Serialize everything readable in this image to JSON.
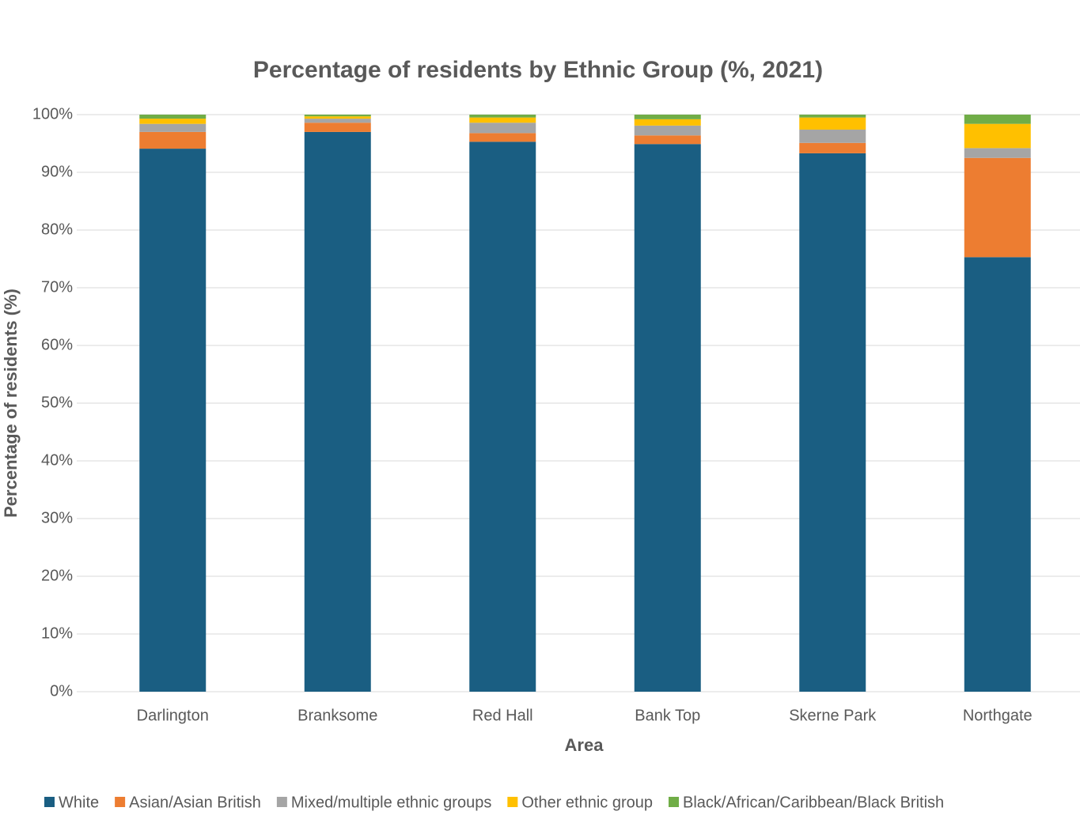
{
  "chart_data": {
    "type": "stacked-bar",
    "title": "Percentage of residents by Ethnic Group (%, 2021)",
    "x_label": "Area",
    "y_label": "Percentage of residents (%)",
    "categories": [
      "Darlington",
      "Branksome",
      "Red Hall",
      "Bank Top",
      "Skerne Park",
      "Northgate"
    ],
    "series": [
      {
        "name": "White",
        "color": "#1a5e82",
        "values": [
          94.1,
          97.0,
          95.3,
          94.9,
          93.3,
          75.3
        ]
      },
      {
        "name": "Asian/Asian British",
        "color": "#ed7d31",
        "values": [
          2.9,
          1.6,
          1.5,
          1.5,
          1.8,
          17.2
        ]
      },
      {
        "name": "Mixed/multiple ethnic groups",
        "color": "#a5a5a5",
        "values": [
          1.4,
          0.7,
          1.8,
          1.7,
          2.3,
          1.7
        ]
      },
      {
        "name": "Other ethnic group",
        "color": "#ffc000",
        "values": [
          0.9,
          0.4,
          0.9,
          1.1,
          2.1,
          4.2
        ]
      },
      {
        "name": "Black/African/Caribbean/Black British",
        "color": "#70ad47",
        "values": [
          0.7,
          0.3,
          0.5,
          0.8,
          0.5,
          1.6
        ]
      }
    ],
    "ylim": [
      0,
      100
    ],
    "yticks": [
      {
        "value": 0,
        "label": "0%"
      },
      {
        "value": 10,
        "label": "10%"
      },
      {
        "value": 20,
        "label": "20%"
      },
      {
        "value": 30,
        "label": "30%"
      },
      {
        "value": 40,
        "label": "40%"
      },
      {
        "value": 50,
        "label": "50%"
      },
      {
        "value": 60,
        "label": "60%"
      },
      {
        "value": 70,
        "label": "70%"
      },
      {
        "value": 80,
        "label": "80%"
      },
      {
        "value": 90,
        "label": "90%"
      },
      {
        "value": 100,
        "label": "100%"
      }
    ],
    "grid": true,
    "legend": "bottom"
  }
}
